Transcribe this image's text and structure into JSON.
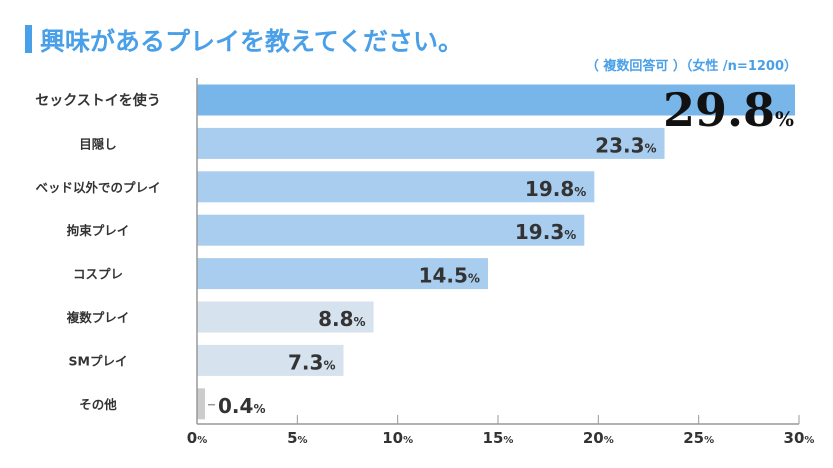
{
  "chart_data": {
    "type": "bar",
    "orientation": "horizontal",
    "title": "興味があるプレイを教えてください。",
    "subtitle": "（ 複数回答可 ）（女性 /n=1200）",
    "categories": [
      "セックストイを使う",
      "目隠し",
      "ベッド以外でのプレイ",
      "拘束プレイ",
      "コスプレ",
      "複数プレイ",
      "SMプレイ",
      "その他"
    ],
    "values": [
      29.8,
      23.3,
      19.8,
      19.3,
      14.5,
      8.8,
      7.3,
      0.4
    ],
    "value_suffix": "%",
    "xlim": [
      0,
      30
    ],
    "xticks": [
      0,
      5,
      10,
      15,
      20,
      25,
      30
    ],
    "tick_suffix": "%",
    "grid": false,
    "colors": [
      "#78b6ea",
      "#a8cdef",
      "#a8cdef",
      "#a8cdef",
      "#a8cdef",
      "#d6e2ee",
      "#d6e2ee",
      "#cccccc"
    ],
    "accent": "#4aa0e8"
  }
}
